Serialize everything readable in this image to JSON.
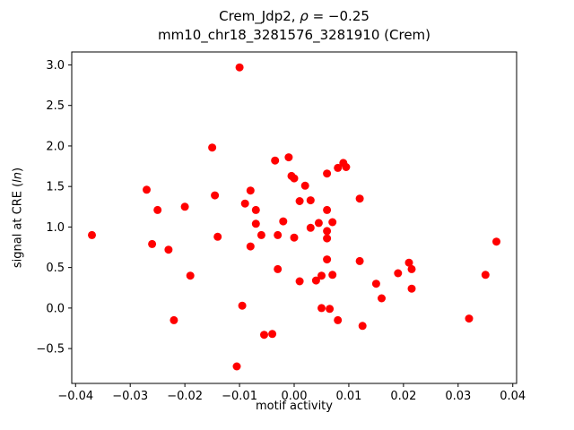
{
  "figure": {
    "title": {
      "part1": "Crem_Jdp2, ",
      "rho": "ρ",
      "part2": " = −0.25",
      "line2": "mm10_chr18_3281576_3281910 (Crem)"
    },
    "xlabel": "motif activity",
    "ylabel_part1": "signal at CRE (",
    "ylabel_italic": "ln",
    "ylabel_part2": ")"
  },
  "chart_data": {
    "type": "scatter",
    "title": "Crem_Jdp2, ρ = −0.25",
    "subtitle": "mm10_chr18_3281576_3281910 (Crem)",
    "xlabel": "motif activity",
    "ylabel": "signal at CRE (ln)",
    "legend": "none",
    "grid": false,
    "marker_color": "#ff0000",
    "marker_radius": 4.5,
    "xlim": [
      -0.0407,
      0.0407
    ],
    "ylim": [
      -0.93,
      3.16
    ],
    "xticks": [
      {
        "v": -0.04,
        "label": "−0.04"
      },
      {
        "v": -0.03,
        "label": "−0.03"
      },
      {
        "v": -0.02,
        "label": "−0.02"
      },
      {
        "v": -0.01,
        "label": "−0.01"
      },
      {
        "v": 0.0,
        "label": "0.00"
      },
      {
        "v": 0.01,
        "label": "0.01"
      },
      {
        "v": 0.02,
        "label": "0.02"
      },
      {
        "v": 0.03,
        "label": "0.03"
      },
      {
        "v": 0.04,
        "label": "0.04"
      }
    ],
    "yticks": [
      {
        "v": -0.5,
        "label": "−0.5"
      },
      {
        "v": 0.0,
        "label": "0.0"
      },
      {
        "v": 0.5,
        "label": "0.5"
      },
      {
        "v": 1.0,
        "label": "1.0"
      },
      {
        "v": 1.5,
        "label": "1.5"
      },
      {
        "v": 2.0,
        "label": "2.0"
      },
      {
        "v": 2.5,
        "label": "2.5"
      },
      {
        "v": 3.0,
        "label": "3.0"
      }
    ],
    "points": [
      [
        -0.037,
        0.9
      ],
      [
        -0.027,
        1.46
      ],
      [
        -0.026,
        0.79
      ],
      [
        -0.025,
        1.21
      ],
      [
        -0.023,
        0.72
      ],
      [
        -0.022,
        -0.15
      ],
      [
        -0.02,
        1.25
      ],
      [
        -0.019,
        0.4
      ],
      [
        -0.015,
        1.98
      ],
      [
        -0.0145,
        1.39
      ],
      [
        -0.014,
        0.88
      ],
      [
        -0.01,
        2.97
      ],
      [
        -0.0105,
        -0.72
      ],
      [
        -0.009,
        1.29
      ],
      [
        -0.0095,
        0.03
      ],
      [
        -0.008,
        1.45
      ],
      [
        -0.008,
        0.76
      ],
      [
        -0.007,
        1.21
      ],
      [
        -0.007,
        1.04
      ],
      [
        -0.006,
        0.9
      ],
      [
        -0.0055,
        -0.33
      ],
      [
        -0.004,
        -0.32
      ],
      [
        -0.0035,
        1.82
      ],
      [
        -0.003,
        0.9
      ],
      [
        -0.003,
        0.48
      ],
      [
        -0.002,
        1.07
      ],
      [
        -0.001,
        1.86
      ],
      [
        -0.0005,
        1.63
      ],
      [
        0.0,
        1.6
      ],
      [
        0.0,
        0.87
      ],
      [
        0.001,
        1.32
      ],
      [
        0.001,
        0.33
      ],
      [
        0.002,
        1.51
      ],
      [
        0.003,
        1.33
      ],
      [
        0.003,
        0.99
      ],
      [
        0.004,
        0.34
      ],
      [
        0.0045,
        1.05
      ],
      [
        0.005,
        0.0
      ],
      [
        0.005,
        0.4
      ],
      [
        0.006,
        1.66
      ],
      [
        0.006,
        1.21
      ],
      [
        0.006,
        0.95
      ],
      [
        0.006,
        0.86
      ],
      [
        0.006,
        0.6
      ],
      [
        0.0065,
        -0.01
      ],
      [
        0.007,
        1.06
      ],
      [
        0.007,
        0.41
      ],
      [
        0.008,
        1.73
      ],
      [
        0.008,
        -0.15
      ],
      [
        0.009,
        1.79
      ],
      [
        0.0095,
        1.74
      ],
      [
        0.012,
        1.35
      ],
      [
        0.012,
        0.58
      ],
      [
        0.0125,
        -0.22
      ],
      [
        0.015,
        0.3
      ],
      [
        0.016,
        0.12
      ],
      [
        0.019,
        0.43
      ],
      [
        0.021,
        0.56
      ],
      [
        0.0215,
        0.48
      ],
      [
        0.0215,
        0.24
      ],
      [
        0.032,
        -0.13
      ],
      [
        0.035,
        0.41
      ],
      [
        0.037,
        0.82
      ]
    ]
  }
}
